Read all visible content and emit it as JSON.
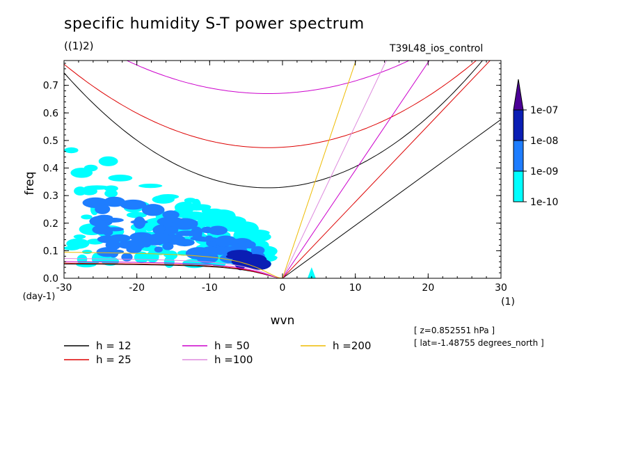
{
  "title": "specific humidity S-T power spectrum",
  "subtitle": "((1)2)",
  "experiment": "T39L48_ios_control",
  "info": {
    "z": "[ z=0.852551 hPa ]",
    "lat": "[ lat=-1.48755 degrees_north ]"
  },
  "chart_data": {
    "type": "heatmap",
    "title": "specific humidity S-T power spectrum",
    "xlabel": "wvn",
    "ylabel": "freq",
    "x_unit": "(1)",
    "y_unit": "(day-1)",
    "xlim": [
      -30,
      30
    ],
    "ylim": [
      0,
      0.79
    ],
    "x_ticks": [
      -30,
      -20,
      -10,
      0,
      10,
      20,
      30
    ],
    "x_tick_labels": [
      "-30",
      "-20",
      "-10",
      "0",
      "10",
      "20",
      "30"
    ],
    "y_ticks": [
      0.0,
      0.1,
      0.2,
      0.3,
      0.4,
      0.5,
      0.6,
      0.7
    ],
    "y_tick_labels": [
      "0.0",
      "0.1",
      "0.2",
      "0.3",
      "0.4",
      "0.5",
      "0.6",
      "0.7"
    ],
    "colorbar": {
      "levels": [
        "1e-10",
        "1e-09",
        "1e-08",
        "1e-07"
      ],
      "colors": [
        "#00ffff",
        "#1e7dff",
        "#0a1eb4",
        "#4b0096"
      ]
    },
    "dispersion_curves": [
      {
        "label": "h = 12",
        "h": 12,
        "color": "#000000"
      },
      {
        "label": "h = 25",
        "h": 25,
        "color": "#dd0000"
      },
      {
        "label": "h = 50",
        "h": 50,
        "color": "#cc00cc"
      },
      {
        "label": "h =100",
        "h": 100,
        "color": "#dd88dd"
      },
      {
        "label": "h =200",
        "h": 200,
        "color": "#eebb00"
      }
    ],
    "power_regions": [
      {
        "level": "1e-10",
        "wvn_range": [
          -29,
          -2
        ],
        "freq_range": [
          0.05,
          0.5
        ]
      },
      {
        "level": "1e-09",
        "wvn_range": [
          -26,
          -3
        ],
        "freq_range": [
          0.07,
          0.32
        ]
      },
      {
        "level": "1e-08",
        "wvn_range": [
          -6,
          -3
        ],
        "freq_range": [
          0.04,
          0.1
        ]
      },
      {
        "level": "1e-10",
        "wvn_range": [
          3.5,
          4.5
        ],
        "freq_range": [
          0.0,
          0.04
        ]
      }
    ]
  }
}
